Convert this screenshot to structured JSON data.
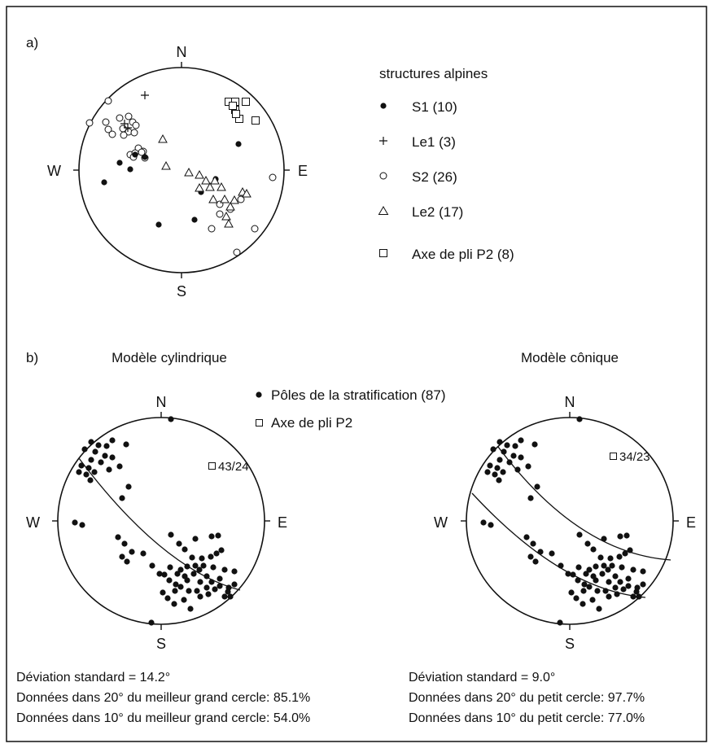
{
  "panel_a": {
    "label": "a)",
    "north": "N",
    "south": "S",
    "east": "E",
    "west": "W",
    "legend_title": "structures alpines",
    "legend": [
      {
        "symbol": "dot",
        "text": "S1 (10)"
      },
      {
        "symbol": "plus",
        "text": "Le1 (3)"
      },
      {
        "symbol": "circle",
        "text": "S2 (26)"
      },
      {
        "symbol": "triangle",
        "text": "Le2 (17)"
      },
      {
        "symbol": "square",
        "text": "Axe de pli P2 (8)"
      }
    ]
  },
  "panel_b": {
    "label": "b)",
    "legend": [
      {
        "symbol": "dot",
        "text": "Pôles de la stratification (87)"
      },
      {
        "symbol": "square",
        "text": "Axe de pli P2"
      }
    ],
    "cyl": {
      "title": "Modèle cylindrique",
      "north": "N",
      "south": "S",
      "east": "E",
      "west": "W",
      "axis_label": "43/24",
      "stats": [
        "Déviation standard = 14.2°",
        "Données dans 20° du meilleur grand cercle: 85.1%",
        "Données dans 10° du meilleur grand cercle: 54.0%"
      ]
    },
    "con": {
      "title": "Modèle cônique",
      "north": "N",
      "south": "S",
      "east": "E",
      "west": "W",
      "axis_label": "34/23",
      "stats": [
        "Déviation standard =  9.0°",
        "Données dans 20° du  petit cercle: 97.7%",
        "Données dans 10° du  petit cercle: 77.0%"
      ]
    }
  }
}
